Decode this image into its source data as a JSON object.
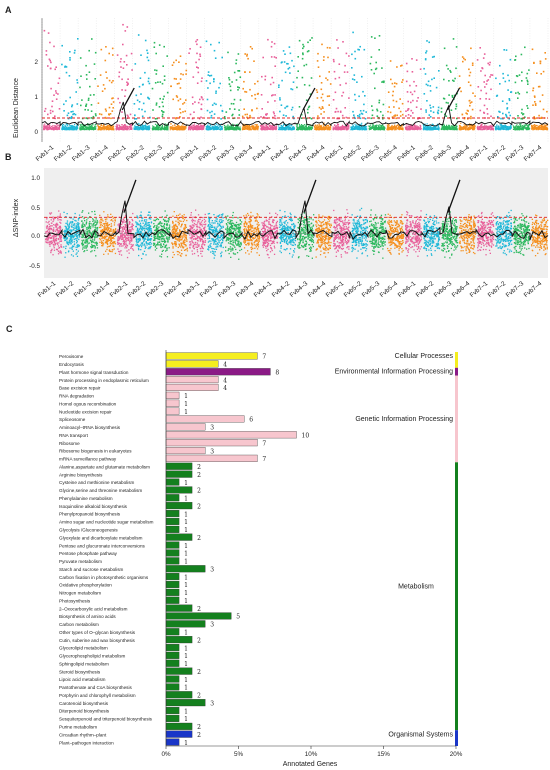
{
  "panels": {
    "a": {
      "label": "A",
      "ylabel": "Euclidean Distance",
      "yticks": [
        "0",
        "1",
        "2"
      ]
    },
    "b": {
      "label": "B",
      "ylabel": "ΔSNP-index",
      "yticks": [
        "1.0",
        "0.5",
        "0.0",
        "-0.5"
      ]
    },
    "c": {
      "label": "C",
      "xlabel": "Annotated Genes"
    }
  },
  "scaffolds": [
    "Fvb1–1",
    "Fvb1–2",
    "Fvb1–3",
    "Fvb1–4",
    "Fvb2–1",
    "Fvb2–2",
    "Fvb2–3",
    "Fvb2–4",
    "Fvb3–1",
    "Fvb3–2",
    "Fvb3–3",
    "Fvb3–4",
    "Fvb4–1",
    "Fvb4–2",
    "Fvb4–3",
    "Fvb4–4",
    "Fvb5–1",
    "Fvb5–2",
    "Fvb5–3",
    "Fvb5–4",
    "Fvb6–1",
    "Fvb6–2",
    "Fvb6–3",
    "Fvb6–4",
    "Fvb7–1",
    "Fvb7–2",
    "Fvb7–3",
    "Fvb7–4"
  ],
  "colors": {
    "scaffold_palette": [
      "#e8609a",
      "#1fb8d8",
      "#2cb85e",
      "#f58f1e"
    ],
    "cellular": "#f5ee1f",
    "environmental": "#8b1a86",
    "genetic": "#f7c6ce",
    "metabolism": "#14801e",
    "organismal": "#1a36c8",
    "threshold": "#e02020",
    "trend": "#111111"
  },
  "chart_data": [
    {
      "type": "scatter",
      "panel": "A",
      "ylabel": "Euclidean Distance",
      "ylim": [
        -0.3,
        2.8
      ],
      "threshold": 0.3,
      "scatter_max_per_scaffold": [
        2.6,
        2.3,
        2.4,
        2.2,
        2.7,
        2.4,
        2.3,
        1.9,
        2.5,
        2.3,
        2.0,
        2.1,
        2.3,
        2.2,
        2.6,
        2.3,
        2.4,
        2.5,
        2.4,
        2.0,
        1.8,
        2.4,
        2.3,
        2.4,
        2.1,
        2.2,
        2.1,
        2.1
      ],
      "trend_peaks": [
        [
          4,
          0.7
        ],
        [
          14,
          0.55
        ],
        [
          22,
          0.6
        ]
      ]
    },
    {
      "type": "scatter",
      "panel": "B",
      "ylabel": "ΔSNP-index",
      "ylim": [
        -0.75,
        1.1
      ],
      "threshold": 0.27,
      "trend_peaks": [
        [
          4,
          0.55
        ],
        [
          14,
          0.55
        ],
        [
          22,
          0.45
        ]
      ]
    },
    {
      "type": "bar",
      "panel": "C",
      "xlabel": "Annotated Genes",
      "xlim": [
        0,
        20
      ],
      "xticks": [
        "0%",
        "5%",
        "10%",
        "15%",
        "20%"
      ],
      "categories": [
        "Peroxisome",
        "Endocytosis",
        "Plant hormone signal transduction",
        "Protein processing in endoplasmic reticulum",
        "Base excision repair",
        "RNA degradation",
        "Homol ogous recombination",
        "Nucleotide excision repair",
        "Spliceosome",
        "Aminoacyl–tRNA biosynthesis",
        "RNA transport",
        "Ribosome",
        "Ribosome biogenesis in eukaryotes",
        "mRNA surveillance pathway",
        "Alanine,aspartate and glutamate metabolism",
        "Arginine biosynthesis",
        "Cysteine and methionine metabolism",
        "Glycine,serine and threonine metabolism",
        "Phenylalanine metabolism",
        "Isoquinoline alkaloid biosynthesis",
        "Phenylpropanoid biosynthesis",
        "Amino sugar and nucleotide sugar metabolism",
        "Glycolysis /Gluconeogenesis",
        "Glyoxylate and dicarboxylate metabolism",
        "Pentose and glucuronate interconversions",
        "Pentose phosphate pathway",
        "Pyruvate metabolism",
        "Starch and sucrose metabolism",
        "Carbon fixation in photosynthetic organisms",
        "Oxidative phosphorylation",
        "Nitrogen metabolism",
        "Photosynthesis",
        "2–Oxocarboxylic acid metabolism",
        "Biosynthesis of amino acids",
        "Carbon metabolism",
        "Other types of O–glycan biosynthesis",
        "Cutin, suberine and wax biosynthesis",
        "Glycerolipid metabolism",
        "Glycerophospholipid metabolism",
        "Sphingolipid metabolism",
        "Steroid biosynthesis",
        "Lipoic acid metabolism",
        "Pantothenate and CoA biosynthesis",
        "Porphyrin and chlorophyll metabolism",
        "Carotenoid biosynthesis",
        "Diterpenoid biosynthesis",
        "Sesquiterpenoid and triterpenoid biosynthesis",
        "Purine metabolism",
        "Circadian rhythm–plant",
        "Plant–pathogen interaction"
      ],
      "values": [
        7,
        4,
        8,
        4,
        4,
        1,
        1,
        1,
        6,
        3,
        10,
        7,
        3,
        7,
        2,
        2,
        1,
        2,
        1,
        2,
        1,
        1,
        1,
        2,
        1,
        1,
        1,
        3,
        1,
        1,
        1,
        1,
        2,
        5,
        3,
        1,
        2,
        1,
        1,
        1,
        2,
        1,
        1,
        2,
        3,
        1,
        1,
        2,
        2,
        1
      ],
      "value_labels": [
        "7",
        "4",
        "8",
        "4",
        "4",
        "1",
        "1",
        "1",
        "6",
        "3",
        "10",
        "7",
        "3",
        "7",
        "2",
        "2",
        "1",
        "2",
        "1",
        "2",
        "1",
        "1",
        "1",
        "2",
        "1",
        "1",
        "1",
        "3",
        "1",
        "1",
        "1",
        "1",
        "2",
        "5",
        "3",
        "1",
        "2",
        "1",
        "1",
        "1",
        "2",
        "1",
        "1",
        "2",
        "3",
        "1",
        "1",
        "2",
        "2",
        "1"
      ],
      "groups": [
        "cellular",
        "cellular",
        "environmental",
        "genetic",
        "genetic",
        "genetic",
        "genetic",
        "genetic",
        "genetic",
        "genetic",
        "genetic",
        "genetic",
        "genetic",
        "genetic",
        "metabolism",
        "metabolism",
        "metabolism",
        "metabolism",
        "metabolism",
        "metabolism",
        "metabolism",
        "metabolism",
        "metabolism",
        "metabolism",
        "metabolism",
        "metabolism",
        "metabolism",
        "metabolism",
        "metabolism",
        "metabolism",
        "metabolism",
        "metabolism",
        "metabolism",
        "metabolism",
        "metabolism",
        "metabolism",
        "metabolism",
        "metabolism",
        "metabolism",
        "metabolism",
        "metabolism",
        "metabolism",
        "metabolism",
        "metabolism",
        "metabolism",
        "metabolism",
        "metabolism",
        "metabolism",
        "organismal",
        "organismal"
      ],
      "group_labels": {
        "cellular": "Cellular Processes",
        "environmental": "Environmental Information Processing",
        "genetic": "Genetic Information Processing",
        "metabolism": "Metabolism",
        "organismal": "Organismal Systems"
      }
    }
  ]
}
